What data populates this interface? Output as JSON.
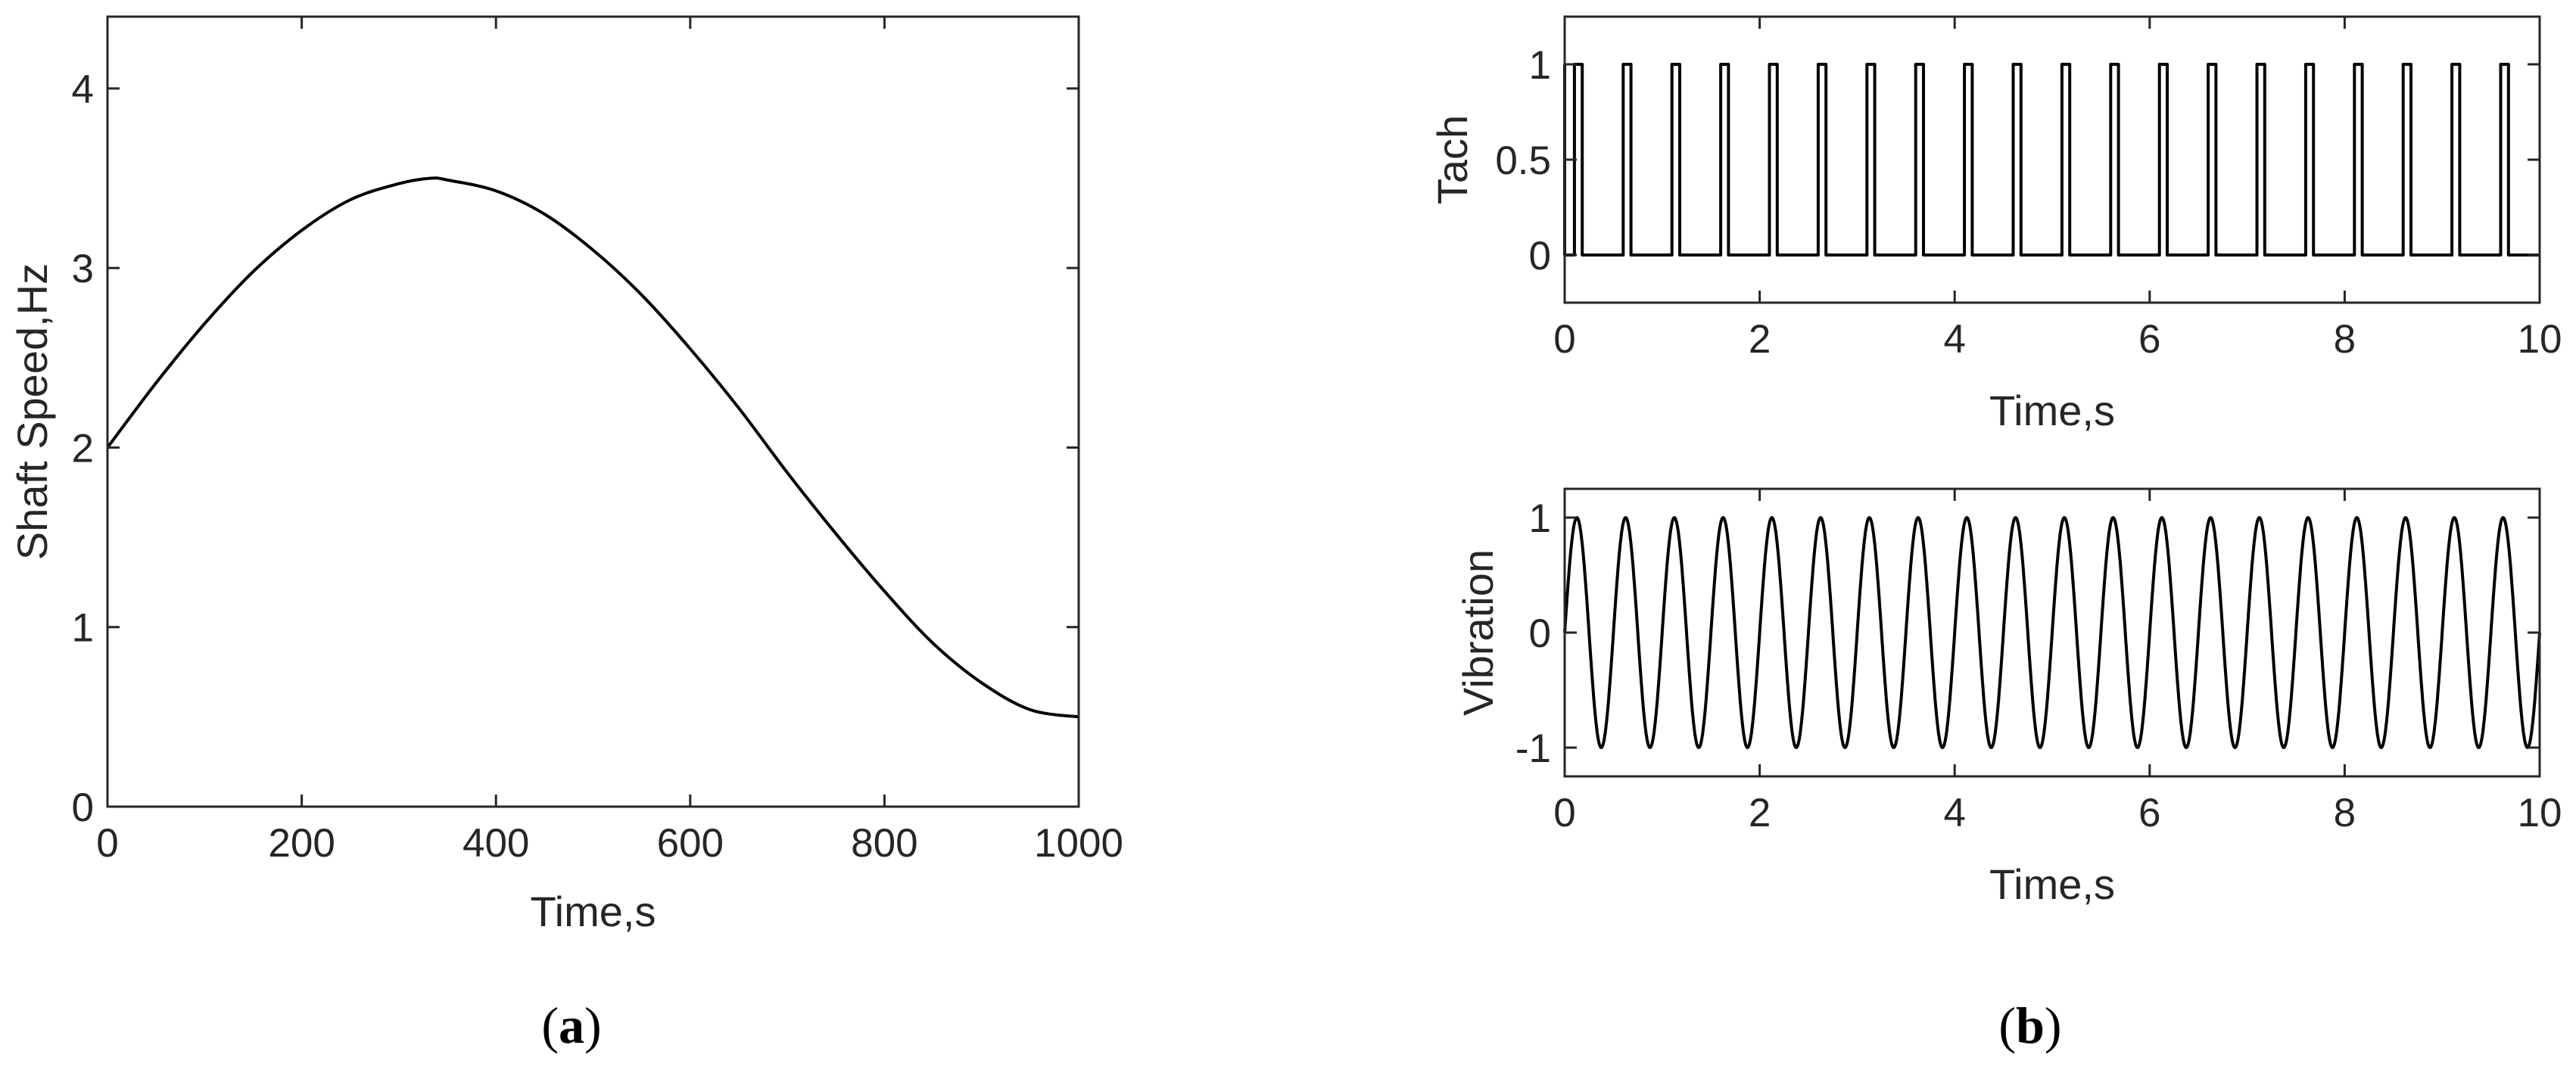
{
  "chart_data": [
    {
      "id": "a",
      "type": "line",
      "panel_label": "a",
      "xlabel": "Time,s",
      "ylabel": "Shaft Speed,Hz",
      "xlim": [
        0,
        1000
      ],
      "ylim": [
        0,
        4.4
      ],
      "xticks": [
        0,
        200,
        400,
        600,
        800,
        1000
      ],
      "yticks": [
        0,
        1,
        2,
        3,
        4
      ],
      "grid": false,
      "series": [
        {
          "x": [
            0,
            50,
            100,
            150,
            200,
            250,
            300,
            333,
            350,
            400,
            450,
            500,
            550,
            600,
            650,
            700,
            750,
            800,
            850,
            900,
            950,
            1000
          ],
          "y": [
            2.0,
            2.36,
            2.69,
            2.98,
            3.21,
            3.38,
            3.47,
            3.5,
            3.49,
            3.43,
            3.3,
            3.1,
            2.85,
            2.55,
            2.22,
            1.86,
            1.52,
            1.2,
            0.91,
            0.69,
            0.54,
            0.5
          ]
        }
      ]
    },
    {
      "id": "b-top",
      "type": "line",
      "panel_label": "b",
      "xlabel": "Time,s",
      "ylabel": "Tach",
      "xlim": [
        0,
        10
      ],
      "ylim": [
        -0.25,
        1.25
      ],
      "xticks": [
        0,
        2,
        4,
        6,
        8,
        10
      ],
      "yticks": [
        0,
        0.5,
        1
      ],
      "ytick_labels": [
        "0",
        "0.5",
        "1"
      ],
      "grid": false,
      "series": [
        {
          "waveform": "pulse_train",
          "pulse_starts": [
            0.1,
            0.6,
            1.1,
            1.6,
            2.1,
            2.6,
            3.1,
            3.6,
            4.1,
            4.6,
            5.1,
            5.6,
            6.1,
            6.6,
            7.1,
            7.6,
            8.1,
            8.6,
            9.1,
            9.6
          ],
          "pulse_width": 0.08,
          "low": 0,
          "high": 1
        }
      ]
    },
    {
      "id": "b-bottom",
      "type": "line",
      "xlabel": "Time,s",
      "ylabel": "Vibration",
      "xlim": [
        0,
        10
      ],
      "ylim": [
        -1.25,
        1.25
      ],
      "xticks": [
        0,
        2,
        4,
        6,
        8,
        10
      ],
      "yticks": [
        -1,
        0,
        1
      ],
      "grid": false,
      "series": [
        {
          "waveform": "sine",
          "amplitude": 1,
          "frequency_hz": 2,
          "phase": 0
        }
      ]
    }
  ]
}
